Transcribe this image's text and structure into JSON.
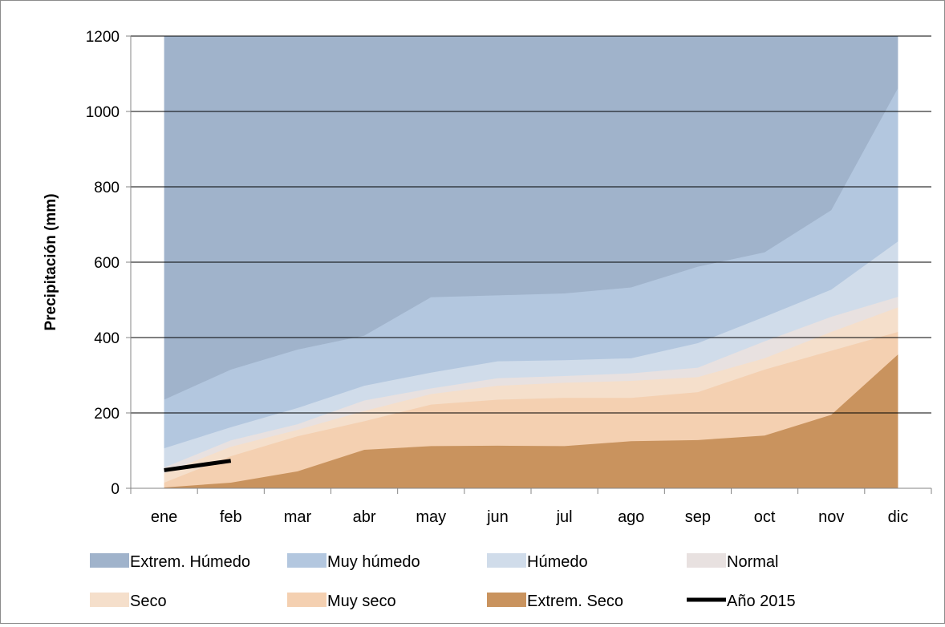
{
  "chart_data": {
    "type": "area",
    "title": "",
    "xlabel": "",
    "ylabel": "Precipitación (mm)",
    "ylim": [
      0,
      1200
    ],
    "yticks": [
      0,
      200,
      400,
      600,
      800,
      1000,
      1200
    ],
    "grid": true,
    "legend_position": "bottom",
    "categories": [
      "ene",
      "feb",
      "mar",
      "abr",
      "may",
      "jun",
      "jul",
      "ago",
      "sep",
      "oct",
      "nov",
      "dic"
    ],
    "series": [
      {
        "name": "Extrem. Húmedo",
        "color": "#a0b3cb",
        "values": [
          1200,
          1200,
          1200,
          1200,
          1200,
          1200,
          1200,
          1200,
          1200,
          1200,
          1200,
          1200
        ]
      },
      {
        "name": "Muy húmedo",
        "color": "#b3c7df",
        "values": [
          235,
          315,
          368,
          405,
          507,
          512,
          517,
          533,
          588,
          626,
          738,
          1062
        ]
      },
      {
        "name": "Húmedo",
        "color": "#d0dcea",
        "values": [
          106,
          162,
          213,
          272,
          307,
          337,
          340,
          345,
          385,
          455,
          527,
          655
        ]
      },
      {
        "name": "Normal",
        "color": "#e8e1e0",
        "values": [
          55,
          127,
          170,
          233,
          265,
          292,
          298,
          305,
          320,
          390,
          455,
          508
        ]
      },
      {
        "name": "Seco",
        "color": "#f5dfcb",
        "values": [
          40,
          110,
          155,
          205,
          250,
          272,
          280,
          285,
          295,
          345,
          415,
          480
        ]
      },
      {
        "name": "Muy seco",
        "color": "#f4d0b1",
        "values": [
          15,
          85,
          138,
          178,
          222,
          235,
          240,
          240,
          255,
          315,
          365,
          415
        ]
      },
      {
        "name": "Extrem. Seco",
        "color": "#c9935e",
        "values": [
          2,
          15,
          45,
          102,
          112,
          113,
          112,
          125,
          128,
          140,
          195,
          355
        ]
      }
    ],
    "line_series": [
      {
        "name": "Año 2015",
        "color": "#000000",
        "categories": [
          "ene",
          "feb"
        ],
        "values": [
          48,
          73
        ]
      }
    ]
  }
}
